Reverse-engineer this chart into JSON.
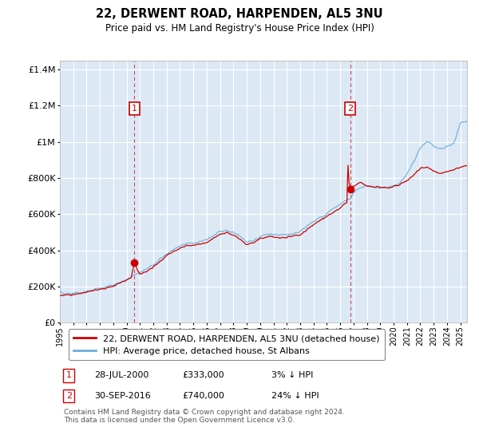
{
  "title": "22, DERWENT ROAD, HARPENDEN, AL5 3NU",
  "subtitle": "Price paid vs. HM Land Registry's House Price Index (HPI)",
  "legend_line1": "22, DERWENT ROAD, HARPENDEN, AL5 3NU (detached house)",
  "legend_line2": "HPI: Average price, detached house, St Albans",
  "annotation1_label": "1",
  "annotation1_date": "28-JUL-2000",
  "annotation1_price": 333000,
  "annotation1_pct": "3% ↓ HPI",
  "annotation1_year": 2000.583,
  "annotation2_label": "2",
  "annotation2_date": "30-SEP-2016",
  "annotation2_price": 740000,
  "annotation2_pct": "24% ↓ HPI",
  "annotation2_year": 2016.75,
  "hpi_color": "#6baed6",
  "price_color": "#cc0000",
  "plot_bg_color": "#dce9f5",
  "ylim_min": 0,
  "ylim_max": 1450000,
  "xlim_min": 1995.0,
  "xlim_max": 2025.5,
  "footer": "Contains HM Land Registry data © Crown copyright and database right 2024.\nThis data is licensed under the Open Government Licence v3.0."
}
